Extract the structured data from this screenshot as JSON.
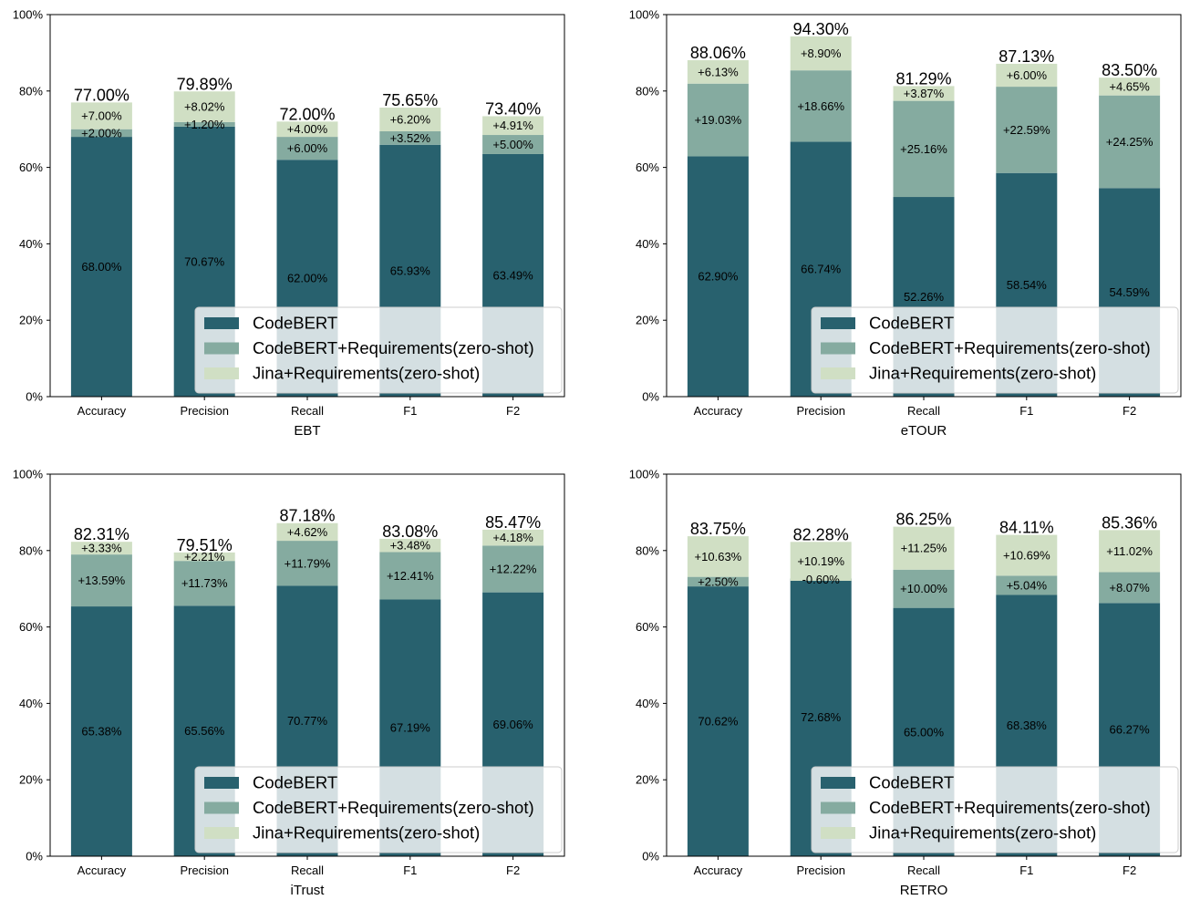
{
  "colors": {
    "base": "#28616e",
    "mid": "#85aba0",
    "top": "#d0dfc4",
    "legend_bg": "#ffffff",
    "axis": "#000000"
  },
  "chart_data": [
    {
      "type": "bar",
      "stacked": true,
      "xlabel": "EBT",
      "categories": [
        "Accuracy",
        "Precision",
        "Recall",
        "F1",
        "F2"
      ],
      "ylim": [
        0,
        100
      ],
      "yticks": [
        0,
        20,
        40,
        60,
        80,
        100
      ],
      "ytick_labels": [
        "0%",
        "20%",
        "40%",
        "60%",
        "80%",
        "100%"
      ],
      "legend_position": "lower-right",
      "series": [
        {
          "name": "CodeBERT",
          "values": [
            68.0,
            70.67,
            62.0,
            65.93,
            63.49
          ],
          "labels": [
            "68.00%",
            "70.67%",
            "62.00%",
            "65.93%",
            "63.49%"
          ]
        },
        {
          "name": "CodeBERT+Requirements(zero-shot)",
          "values": [
            2.0,
            1.2,
            6.0,
            3.52,
            5.0
          ],
          "labels": [
            "+2.00%",
            "+1.20%",
            "+6.00%",
            "+3.52%",
            "+5.00%"
          ]
        },
        {
          "name": "Jina+Requirements(zero-shot)",
          "values": [
            7.0,
            8.02,
            4.0,
            6.2,
            4.91
          ],
          "labels": [
            "+7.00%",
            "+8.02%",
            "+4.00%",
            "+6.20%",
            "+4.91%"
          ]
        }
      ],
      "totals": [
        77.0,
        79.89,
        72.0,
        75.65,
        73.4
      ],
      "total_labels": [
        "77.00%",
        "79.89%",
        "72.00%",
        "75.65%",
        "73.40%"
      ]
    },
    {
      "type": "bar",
      "stacked": true,
      "xlabel": "eTOUR",
      "categories": [
        "Accuracy",
        "Precision",
        "Recall",
        "F1",
        "F2"
      ],
      "ylim": [
        0,
        100
      ],
      "yticks": [
        0,
        20,
        40,
        60,
        80,
        100
      ],
      "ytick_labels": [
        "0%",
        "20%",
        "40%",
        "60%",
        "80%",
        "100%"
      ],
      "legend_position": "lower-right",
      "series": [
        {
          "name": "CodeBERT",
          "values": [
            62.9,
            66.74,
            52.26,
            58.54,
            54.59
          ],
          "labels": [
            "62.90%",
            "66.74%",
            "52.26%",
            "58.54%",
            "54.59%"
          ]
        },
        {
          "name": "CodeBERT+Requirements(zero-shot)",
          "values": [
            19.03,
            18.66,
            25.16,
            22.59,
            24.25
          ],
          "labels": [
            "+19.03%",
            "+18.66%",
            "+25.16%",
            "+22.59%",
            "+24.25%"
          ]
        },
        {
          "name": "Jina+Requirements(zero-shot)",
          "values": [
            6.13,
            8.9,
            3.87,
            6.0,
            4.65
          ],
          "labels": [
            "+6.13%",
            "+8.90%",
            "+3.87%",
            "+6.00%",
            "+4.65%"
          ]
        }
      ],
      "totals": [
        88.06,
        94.3,
        81.29,
        87.13,
        83.5
      ],
      "total_labels": [
        "88.06%",
        "94.30%",
        "81.29%",
        "87.13%",
        "83.50%"
      ]
    },
    {
      "type": "bar",
      "stacked": true,
      "xlabel": "iTrust",
      "categories": [
        "Accuracy",
        "Precision",
        "Recall",
        "F1",
        "F2"
      ],
      "ylim": [
        0,
        100
      ],
      "yticks": [
        0,
        20,
        40,
        60,
        80,
        100
      ],
      "ytick_labels": [
        "0%",
        "20%",
        "40%",
        "60%",
        "80%",
        "100%"
      ],
      "legend_position": "lower-right",
      "series": [
        {
          "name": "CodeBERT",
          "values": [
            65.38,
            65.56,
            70.77,
            67.19,
            69.06
          ],
          "labels": [
            "65.38%",
            "65.56%",
            "70.77%",
            "67.19%",
            "69.06%"
          ]
        },
        {
          "name": "CodeBERT+Requirements(zero-shot)",
          "values": [
            13.59,
            11.73,
            11.79,
            12.41,
            12.22
          ],
          "labels": [
            "+13.59%",
            "+11.73%",
            "+11.79%",
            "+12.41%",
            "+12.22%"
          ]
        },
        {
          "name": "Jina+Requirements(zero-shot)",
          "values": [
            3.33,
            2.21,
            4.62,
            3.48,
            4.18
          ],
          "labels": [
            "+3.33%",
            "+2.21%",
            "+4.62%",
            "+3.48%",
            "+4.18%"
          ]
        }
      ],
      "totals": [
        82.31,
        79.51,
        87.18,
        83.08,
        85.47
      ],
      "total_labels": [
        "82.31%",
        "79.51%",
        "87.18%",
        "83.08%",
        "85.47%"
      ]
    },
    {
      "type": "bar",
      "stacked": true,
      "xlabel": "RETRO",
      "categories": [
        "Accuracy",
        "Precision",
        "Recall",
        "F1",
        "F2"
      ],
      "ylim": [
        0,
        100
      ],
      "yticks": [
        0,
        20,
        40,
        60,
        80,
        100
      ],
      "ytick_labels": [
        "0%",
        "20%",
        "40%",
        "60%",
        "80%",
        "100%"
      ],
      "legend_position": "lower-right",
      "series": [
        {
          "name": "CodeBERT",
          "values": [
            70.62,
            72.68,
            65.0,
            68.38,
            66.27
          ],
          "labels": [
            "70.62%",
            "72.68%",
            "65.00%",
            "68.38%",
            "66.27%"
          ]
        },
        {
          "name": "CodeBERT+Requirements(zero-shot)",
          "values": [
            2.5,
            -0.6,
            10.0,
            5.04,
            8.07
          ],
          "labels": [
            "+2.50%",
            "-0.60%",
            "+10.00%",
            "+5.04%",
            "+8.07%"
          ]
        },
        {
          "name": "Jina+Requirements(zero-shot)",
          "values": [
            10.63,
            10.19,
            11.25,
            10.69,
            11.02
          ],
          "labels": [
            "+10.63%",
            "+10.19%",
            "+11.25%",
            "+10.69%",
            "+11.02%"
          ]
        }
      ],
      "totals": [
        83.75,
        82.28,
        86.25,
        84.11,
        85.36
      ],
      "total_labels": [
        "83.75%",
        "82.28%",
        "86.25%",
        "84.11%",
        "85.36%"
      ]
    }
  ]
}
